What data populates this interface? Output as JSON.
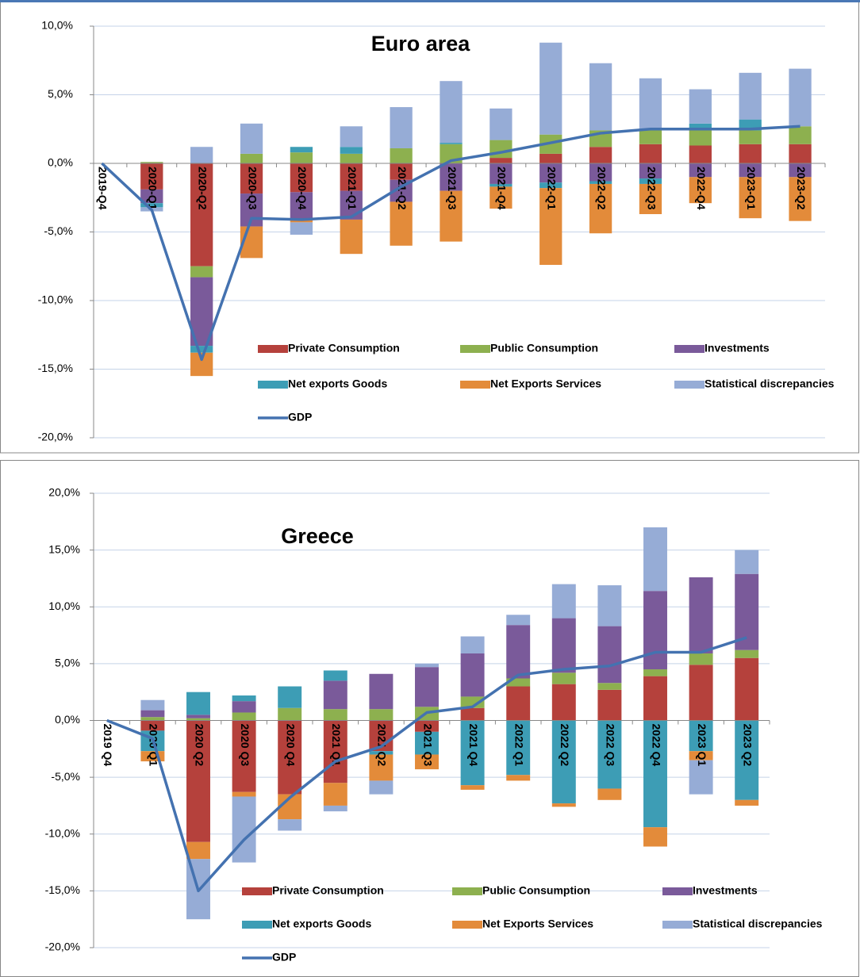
{
  "chart_data": [
    {
      "type": "stacked_bar",
      "title": "Euro area",
      "categories": [
        "2019-Q4",
        "2020-Q1",
        "2020-Q2",
        "2020-Q3",
        "2020-Q4",
        "2021-Q1",
        "2021-Q2",
        "2021-Q3",
        "2021-Q4",
        "2022-Q1",
        "2022-Q2",
        "2022-Q3",
        "2022-Q4",
        "2023-Q1",
        "2023-Q2"
      ],
      "series": [
        {
          "name": "Private Consumption",
          "color": "#b5413c",
          "values": [
            0,
            -1.9,
            -7.5,
            -2.2,
            -2.1,
            -2.0,
            -1.2,
            0,
            0.4,
            0.7,
            1.2,
            1.4,
            1.3,
            1.4,
            1.4
          ]
        },
        {
          "name": "Public Consumption",
          "color": "#8db04f",
          "values": [
            0,
            0.1,
            -0.8,
            0.7,
            0.8,
            0.7,
            1.1,
            1.4,
            1.3,
            1.4,
            1.2,
            1.0,
            1.3,
            1.0,
            1.3
          ]
        },
        {
          "name": "Investments",
          "color": "#7a5a9a",
          "values": [
            0,
            -1.0,
            -5.0,
            -2.4,
            -2.0,
            -2.1,
            -1.6,
            -2.0,
            -1.5,
            -1.4,
            -1.3,
            -1.1,
            -1.0,
            -1.0,
            -1.0
          ]
        },
        {
          "name": "Net exports Goods",
          "color": "#3d9db5",
          "values": [
            0,
            -0.3,
            -0.5,
            0,
            0.4,
            0.5,
            0,
            0.1,
            -0.2,
            -0.4,
            -0.2,
            -0.4,
            0.3,
            0.8,
            0
          ]
        },
        {
          "name": "Net Exports Services",
          "color": "#e38b3a",
          "values": [
            0,
            0,
            -1.7,
            -2.3,
            -0.2,
            -2.5,
            -3.2,
            -3.7,
            -1.6,
            -5.6,
            -3.6,
            -2.2,
            -1.9,
            -3.0,
            -3.2
          ]
        },
        {
          "name": "Statistical discrepancies",
          "color": "#96acd6",
          "values": [
            0,
            -0.3,
            1.2,
            2.2,
            -0.9,
            1.5,
            3.0,
            4.5,
            2.3,
            6.7,
            4.9,
            3.8,
            2.5,
            3.4,
            4.2
          ]
        },
        {
          "name": "GDP",
          "type": "line",
          "color": "#4472b0",
          "values": [
            0,
            -3.4,
            -14.3,
            -4.0,
            -4.1,
            -3.9,
            -1.7,
            0.2,
            0.8,
            1.5,
            2.2,
            2.5,
            2.5,
            2.5,
            2.7
          ]
        }
      ],
      "ylim": [
        -20,
        10
      ],
      "yticks": [
        {
          "value": 10,
          "label": "10,0%"
        },
        {
          "value": 5,
          "label": "5,0%"
        },
        {
          "value": 0,
          "label": "0,0%"
        },
        {
          "value": -5,
          "label": "-5,0%"
        },
        {
          "value": -10,
          "label": "-10,0%"
        },
        {
          "value": -15,
          "label": "-15,0%"
        },
        {
          "value": -20,
          "label": "-20,0%"
        }
      ],
      "grid": true,
      "legend": "bottom"
    },
    {
      "type": "stacked_bar",
      "title": "Greece",
      "categories": [
        "2019 Q4",
        "2020 Q1",
        "2020 Q2",
        "2020 Q3",
        "2020 Q4",
        "2021 Q1",
        "2021 Q2",
        "2021 Q3",
        "2021 Q4",
        "2022 Q1",
        "2022 Q2",
        "2022 Q3",
        "2022 Q4",
        "2023 Q1",
        "2023 Q2"
      ],
      "series": [
        {
          "name": "Private Consumption",
          "color": "#b5413c",
          "values": [
            0,
            -0.9,
            -10.7,
            -6.3,
            -6.5,
            -5.5,
            -2.7,
            -1.0,
            1.1,
            3.0,
            3.2,
            2.7,
            3.9,
            4.9,
            5.5
          ]
        },
        {
          "name": "Public Consumption",
          "color": "#8db04f",
          "values": [
            0,
            0.3,
            0.2,
            0.7,
            1.1,
            1.0,
            1.0,
            1.2,
            1.0,
            0.7,
            1.0,
            0.6,
            0.6,
            1.0,
            0.7
          ]
        },
        {
          "name": "Investments",
          "color": "#7a5a9a",
          "values": [
            0,
            0.6,
            0.3,
            1.0,
            0,
            2.5,
            3.1,
            3.5,
            3.8,
            4.7,
            4.8,
            5.0,
            6.9,
            6.7,
            6.7
          ]
        },
        {
          "name": "Net exports Goods",
          "color": "#3d9db5",
          "values": [
            0,
            -1.8,
            2.0,
            0.5,
            1.9,
            0.9,
            -0.3,
            -2.0,
            -5.7,
            -4.8,
            -7.3,
            -6.0,
            -9.4,
            -2.7,
            -7.0
          ]
        },
        {
          "name": "Net Exports Services",
          "color": "#e38b3a",
          "values": [
            0,
            -0.9,
            -1.5,
            -0.4,
            -2.2,
            -2.0,
            -2.3,
            -1.3,
            -0.4,
            -0.5,
            -0.3,
            -1.0,
            -1.7,
            -0.8,
            -0.5
          ]
        },
        {
          "name": "Statistical discrepancies",
          "color": "#96acd6",
          "values": [
            0,
            0.9,
            -5.3,
            -5.8,
            -1.0,
            -0.5,
            -1.2,
            0.3,
            1.5,
            0.9,
            3.0,
            3.6,
            5.6,
            -3.0,
            2.1
          ]
        },
        {
          "name": "GDP",
          "type": "line",
          "color": "#4472b0",
          "values": [
            0,
            -1.6,
            -15.0,
            -10.5,
            -6.8,
            -3.6,
            -2.3,
            0.7,
            1.2,
            4.0,
            4.5,
            4.8,
            6.0,
            6.0,
            7.3
          ]
        }
      ],
      "ylim": [
        -20,
        20
      ],
      "yticks": [
        {
          "value": 20,
          "label": "20,0%"
        },
        {
          "value": 15,
          "label": "15,0%"
        },
        {
          "value": 10,
          "label": "10,0%"
        },
        {
          "value": 5,
          "label": "5,0%"
        },
        {
          "value": 0,
          "label": "0,0%"
        },
        {
          "value": -5,
          "label": "-5,0%"
        },
        {
          "value": -10,
          "label": "-10,0%"
        },
        {
          "value": -15,
          "label": "-15,0%"
        },
        {
          "value": -20,
          "label": "-20,0%"
        }
      ],
      "grid": true,
      "legend": "bottom"
    }
  ]
}
